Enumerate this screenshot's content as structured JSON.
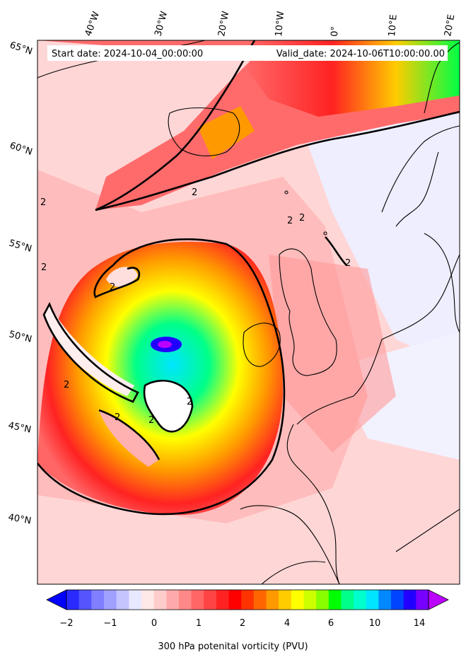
{
  "header": {
    "start_date": "Start date: 2024-10-04_00:00:00",
    "valid_date": "Valid_date: 2024-10-06T10:00:00.00"
  },
  "longitude_labels": [
    "40°W",
    "30°W",
    "20°W",
    "10°W",
    "0°",
    "10°E",
    "20°E"
  ],
  "latitude_labels": [
    "65°N",
    "60°N",
    "55°N",
    "50°N",
    "45°N",
    "40°N"
  ],
  "contour_label": "2",
  "colorbar": {
    "title": "300 hPa potenital vorticity (PVU)",
    "ticks": [
      "−2",
      "−1",
      "0",
      "1",
      "2",
      "4",
      "6",
      "10",
      "14"
    ],
    "colors": [
      "#0000ff",
      "#2a2aff",
      "#5555ff",
      "#7f7fff",
      "#a0a0ff",
      "#c4c4ff",
      "#e8e8ff",
      "#ffe8e8",
      "#ffcccc",
      "#ffaaaa",
      "#ff8888",
      "#ff6666",
      "#ff4444",
      "#ff2222",
      "#ff0000",
      "#ff3300",
      "#ff6600",
      "#ff9900",
      "#ffcc00",
      "#ffff00",
      "#ccff00",
      "#88ff00",
      "#00ff00",
      "#00ff88",
      "#00ffcc",
      "#00e5ff",
      "#0088ff",
      "#0044ff",
      "#2200ff",
      "#7700ff",
      "#bb00ff"
    ]
  }
}
